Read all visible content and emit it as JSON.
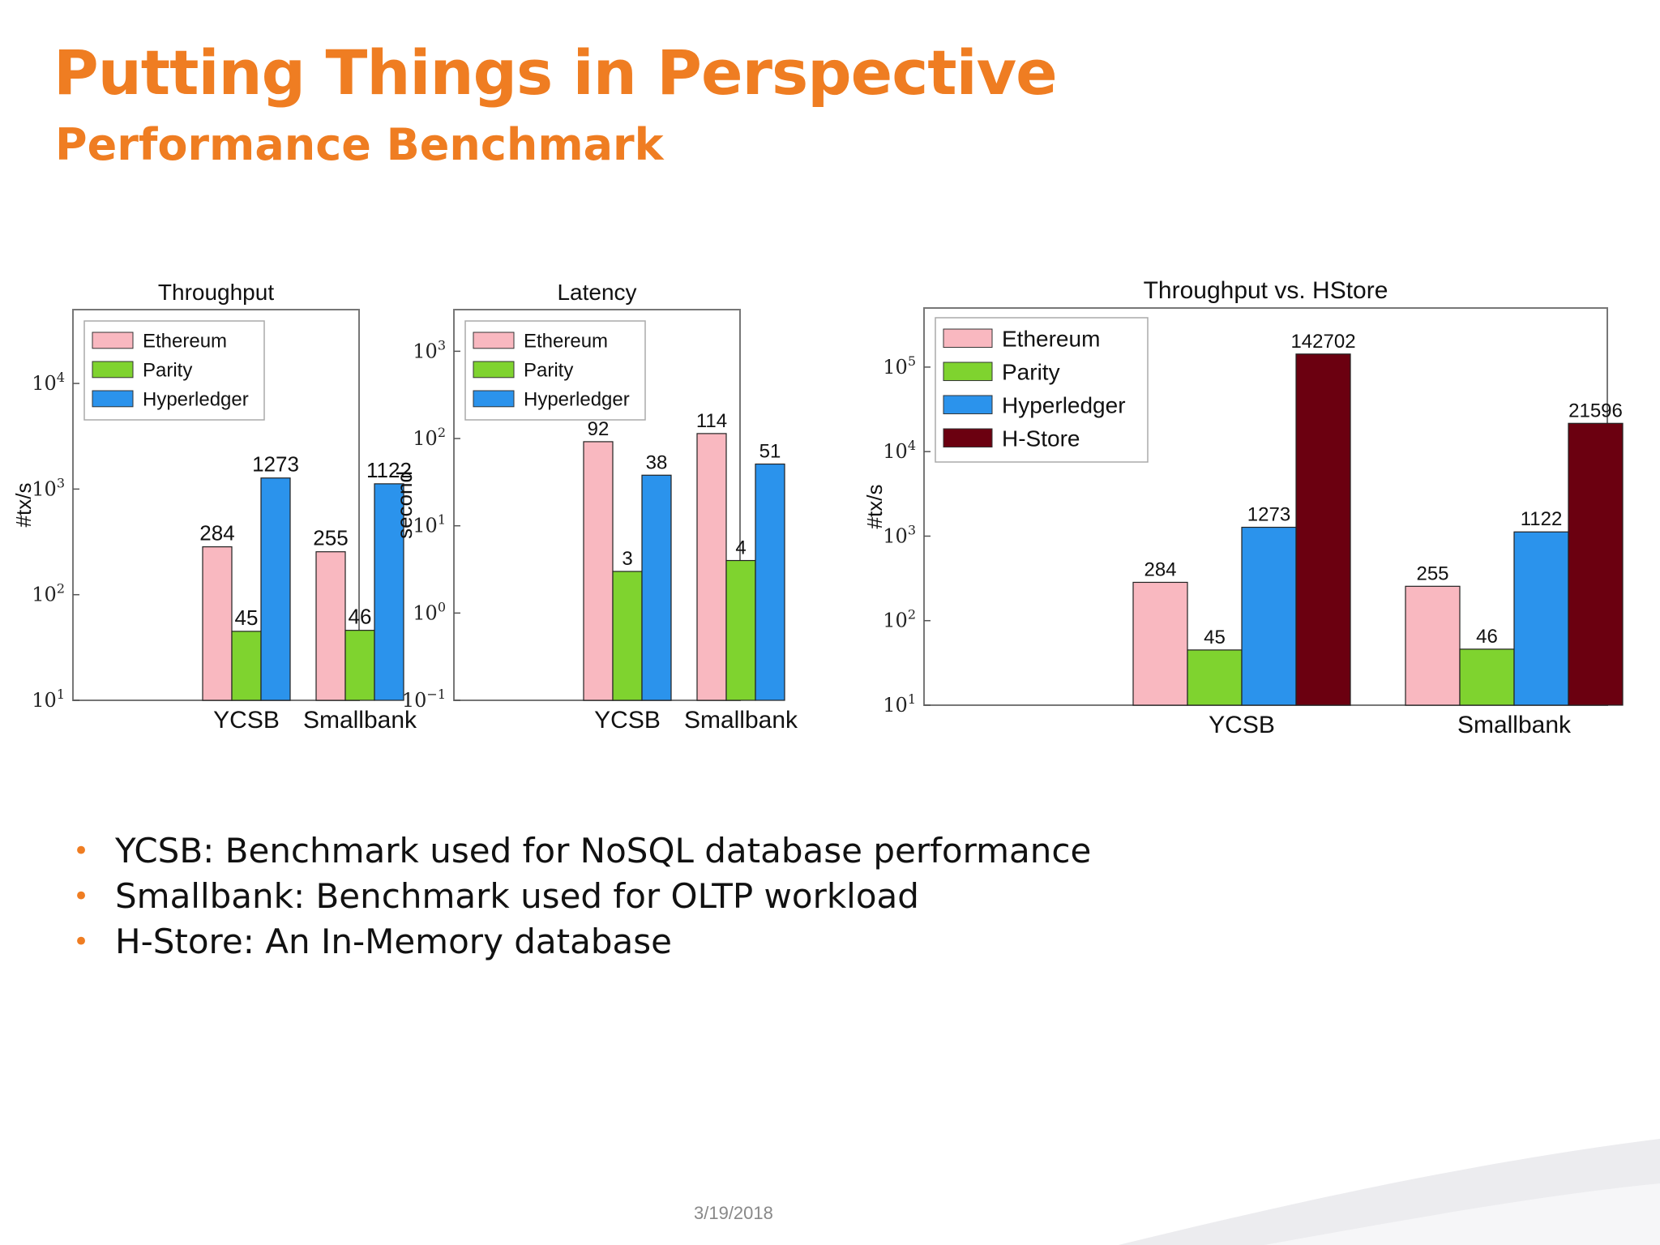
{
  "slide": {
    "title": "Putting Things in Perspective",
    "subtitle": "Performance Benchmark",
    "date": "3/19/2018",
    "bullets": [
      "YCSB: Benchmark used for NoSQL database performance",
      "Smallbank: Benchmark used for OLTP workload",
      "H-Store: An In-Memory database"
    ],
    "accent_color": "#ef7d22"
  },
  "chart_data": [
    {
      "type": "bar",
      "title": "Throughput",
      "ylabel": "#tx/s",
      "yscale": "log",
      "ylim": [
        10,
        50000
      ],
      "yticks": [
        {
          "value": 10,
          "exp": "1"
        },
        {
          "value": 100,
          "exp": "2"
        },
        {
          "value": 1000,
          "exp": "3"
        },
        {
          "value": 10000,
          "exp": "4"
        }
      ],
      "categories": [
        "YCSB",
        "Smallbank"
      ],
      "legend": "top-left",
      "series": [
        {
          "name": "Ethereum",
          "color": "#f9b8c0",
          "values": [
            284,
            255
          ],
          "labels": [
            "284",
            "255"
          ]
        },
        {
          "name": "Parity",
          "color": "#7fd32f",
          "values": [
            45,
            46
          ],
          "labels": [
            "45",
            "46"
          ]
        },
        {
          "name": "Hyperledger",
          "color": "#2b93ec",
          "values": [
            1273,
            1122
          ],
          "labels": [
            "1273",
            "1122"
          ]
        }
      ]
    },
    {
      "type": "bar",
      "title": "Latency",
      "ylabel": "second",
      "yscale": "log",
      "ylim": [
        0.1,
        3000
      ],
      "yticks": [
        {
          "value": 0.1,
          "exp": "−1"
        },
        {
          "value": 1,
          "exp": "0"
        },
        {
          "value": 10,
          "exp": "1"
        },
        {
          "value": 100,
          "exp": "2"
        },
        {
          "value": 1000,
          "exp": "3"
        }
      ],
      "categories": [
        "YCSB",
        "Smallbank"
      ],
      "legend": "top-left",
      "series": [
        {
          "name": "Ethereum",
          "color": "#f9b8c0",
          "values": [
            92,
            114
          ],
          "labels": [
            "92",
            "114"
          ]
        },
        {
          "name": "Parity",
          "color": "#7fd32f",
          "values": [
            3,
            4
          ],
          "labels": [
            "3",
            "4"
          ]
        },
        {
          "name": "Hyperledger",
          "color": "#2b93ec",
          "values": [
            38,
            51
          ],
          "labels": [
            "38",
            "51"
          ]
        }
      ]
    },
    {
      "type": "bar",
      "title": "Throughput vs. HStore",
      "ylabel": "#tx/s",
      "yscale": "log",
      "ylim": [
        10,
        500000
      ],
      "yticks": [
        {
          "value": 10,
          "exp": "1"
        },
        {
          "value": 100,
          "exp": "2"
        },
        {
          "value": 1000,
          "exp": "3"
        },
        {
          "value": 10000,
          "exp": "4"
        },
        {
          "value": 100000,
          "exp": "5"
        }
      ],
      "categories": [
        "YCSB",
        "Smallbank"
      ],
      "legend": "top-left",
      "series": [
        {
          "name": "Ethereum",
          "color": "#f9b8c0",
          "values": [
            284,
            255
          ],
          "labels": [
            "284",
            "255"
          ]
        },
        {
          "name": "Parity",
          "color": "#7fd32f",
          "values": [
            45,
            46
          ],
          "labels": [
            "45",
            "46"
          ]
        },
        {
          "name": "Hyperledger",
          "color": "#2b93ec",
          "values": [
            1273,
            1122
          ],
          "labels": [
            "1273",
            "1122"
          ]
        },
        {
          "name": "H-Store",
          "color": "#6b0010",
          "values": [
            142702,
            21596
          ],
          "labels": [
            "142702",
            "21596"
          ]
        }
      ]
    }
  ]
}
